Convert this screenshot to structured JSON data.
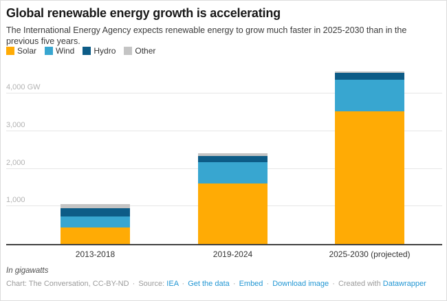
{
  "header": {
    "title": "Global renewable energy growth is accelerating",
    "subtitle": "The International Energy Agency expects renewable energy to grow much faster in 2025-2030 than in the previous five years."
  },
  "legend": [
    {
      "label": "Solar",
      "color": "#ffab05"
    },
    {
      "label": "Wind",
      "color": "#38a6d0"
    },
    {
      "label": "Hydro",
      "color": "#0d5c87"
    },
    {
      "label": "Other",
      "color": "#c4c4c4"
    }
  ],
  "chart_data": {
    "type": "bar",
    "stacked": true,
    "title": "Global renewable energy growth is accelerating",
    "categories": [
      "2013-2018",
      "2019-2024",
      "2025-2030 (projected)"
    ],
    "series": [
      {
        "name": "Solar",
        "color": "#ffab05",
        "values": [
          445,
          1615,
          3520
        ]
      },
      {
        "name": "Wind",
        "color": "#38a6d0",
        "values": [
          290,
          565,
          850
        ]
      },
      {
        "name": "Hydro",
        "color": "#0d5c87",
        "values": [
          215,
          150,
          180
        ]
      },
      {
        "name": "Other",
        "color": "#c4c4c4",
        "values": [
          110,
          75,
          45
        ]
      }
    ],
    "totals": [
      1060,
      2405,
      4595
    ],
    "unit": "GW",
    "units_note": "In gigawatts",
    "ylim": [
      0,
      4750
    ],
    "yticks": [
      {
        "value": 1000,
        "label": "1,000"
      },
      {
        "value": 2000,
        "label": "2,000"
      },
      {
        "value": 3000,
        "label": "3,000"
      },
      {
        "value": 4000,
        "label": "4,000 GW"
      }
    ],
    "grid": true,
    "legend_position": "top-left"
  },
  "footer": {
    "note": "In gigawatts",
    "credit_prefix": "Chart: The Conversation, CC-BY-ND",
    "source_label": "Source:",
    "links": [
      "IEA",
      "Get the data",
      "Embed",
      "Download image"
    ],
    "created_with": "Created with",
    "created_with_link": "Datawrapper",
    "separator": "·",
    "link_color": "#2196d3"
  }
}
